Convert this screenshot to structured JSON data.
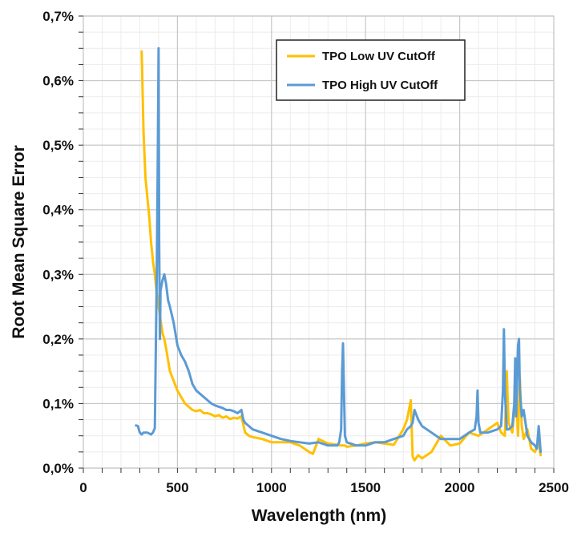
{
  "chart_data": {
    "type": "line",
    "title": "",
    "xlabel": "Wavelength (nm)",
    "ylabel": "Root Mean Square Error",
    "xlim": [
      0,
      2500
    ],
    "ylim": [
      0,
      0.7
    ],
    "x_major_ticks": [
      0,
      500,
      1000,
      1500,
      2000,
      2500
    ],
    "x_tick_labels": [
      "0",
      "500",
      "1000",
      "1500",
      "2000",
      "2500"
    ],
    "y_major_ticks": [
      0,
      0.1,
      0.2,
      0.3,
      0.4,
      0.5,
      0.6,
      0.7
    ],
    "y_tick_labels": [
      "0,0%",
      "0,1%",
      "0,2%",
      "0,3%",
      "0,4%",
      "0,5%",
      "0,6%",
      "0,7%"
    ],
    "x_minor_step": 100,
    "y_minor_step": 0.025,
    "grid": true,
    "legend_position": "top-right",
    "series": [
      {
        "name": "TPO Low UV CutOff",
        "color": "#FFC000",
        "x": [
          310,
          320,
          330,
          340,
          350,
          360,
          370,
          380,
          390,
          400,
          410,
          420,
          430,
          440,
          460,
          480,
          500,
          520,
          540,
          560,
          580,
          600,
          620,
          640,
          660,
          680,
          700,
          720,
          740,
          760,
          780,
          800,
          820,
          840,
          860,
          880,
          900,
          950,
          1000,
          1050,
          1100,
          1150,
          1200,
          1220,
          1250,
          1300,
          1350,
          1370,
          1380,
          1390,
          1400,
          1450,
          1500,
          1550,
          1600,
          1650,
          1700,
          1720,
          1740,
          1750,
          1760,
          1780,
          1800,
          1850,
          1900,
          1950,
          2000,
          2050,
          2100,
          2150,
          2200,
          2220,
          2240,
          2250,
          2260,
          2280,
          2300,
          2310,
          2320,
          2330,
          2340,
          2360,
          2380,
          2400,
          2420,
          2430
        ],
        "y": [
          0.645,
          0.52,
          0.45,
          0.42,
          0.39,
          0.35,
          0.32,
          0.3,
          0.27,
          0.25,
          0.23,
          0.21,
          0.2,
          0.185,
          0.15,
          0.135,
          0.12,
          0.11,
          0.1,
          0.095,
          0.09,
          0.088,
          0.09,
          0.085,
          0.085,
          0.083,
          0.08,
          0.082,
          0.078,
          0.08,
          0.076,
          0.078,
          0.077,
          0.08,
          0.055,
          0.05,
          0.048,
          0.045,
          0.04,
          0.04,
          0.04,
          0.035,
          0.025,
          0.022,
          0.045,
          0.038,
          0.036,
          0.035,
          0.035,
          0.035,
          0.033,
          0.035,
          0.038,
          0.04,
          0.038,
          0.036,
          0.06,
          0.075,
          0.105,
          0.018,
          0.012,
          0.02,
          0.015,
          0.025,
          0.05,
          0.035,
          0.038,
          0.055,
          0.05,
          0.06,
          0.07,
          0.055,
          0.05,
          0.15,
          0.07,
          0.055,
          0.12,
          0.05,
          0.14,
          0.065,
          0.045,
          0.06,
          0.03,
          0.025,
          0.04,
          0.02
        ]
      },
      {
        "name": "TPO High UV CutOff",
        "color": "#5B9BD5",
        "x": [
          280,
          290,
          300,
          310,
          320,
          340,
          360,
          370,
          380,
          390,
          395,
          400,
          403,
          407,
          410,
          420,
          430,
          440,
          450,
          460,
          480,
          500,
          520,
          540,
          560,
          580,
          600,
          620,
          640,
          660,
          680,
          700,
          720,
          740,
          760,
          780,
          800,
          820,
          840,
          850,
          860,
          880,
          900,
          950,
          1000,
          1050,
          1100,
          1150,
          1200,
          1250,
          1300,
          1350,
          1360,
          1370,
          1375,
          1380,
          1385,
          1390,
          1400,
          1450,
          1500,
          1550,
          1600,
          1650,
          1700,
          1720,
          1740,
          1750,
          1760,
          1780,
          1800,
          1850,
          1900,
          1950,
          2000,
          2050,
          2080,
          2090,
          2095,
          2100,
          2110,
          2150,
          2200,
          2220,
          2230,
          2235,
          2240,
          2250,
          2260,
          2280,
          2290,
          2295,
          2300,
          2310,
          2315,
          2320,
          2330,
          2340,
          2360,
          2380,
          2400,
          2410,
          2420,
          2430
        ],
        "y": [
          0.066,
          0.065,
          0.055,
          0.052,
          0.055,
          0.055,
          0.052,
          0.055,
          0.062,
          0.3,
          0.45,
          0.65,
          0.35,
          0.2,
          0.275,
          0.29,
          0.3,
          0.285,
          0.26,
          0.25,
          0.225,
          0.19,
          0.175,
          0.165,
          0.15,
          0.13,
          0.12,
          0.115,
          0.11,
          0.105,
          0.1,
          0.097,
          0.095,
          0.093,
          0.09,
          0.09,
          0.088,
          0.085,
          0.09,
          0.075,
          0.07,
          0.065,
          0.06,
          0.055,
          0.05,
          0.045,
          0.042,
          0.04,
          0.038,
          0.04,
          0.035,
          0.035,
          0.04,
          0.06,
          0.15,
          0.193,
          0.12,
          0.05,
          0.04,
          0.035,
          0.035,
          0.04,
          0.04,
          0.045,
          0.05,
          0.06,
          0.065,
          0.07,
          0.09,
          0.075,
          0.065,
          0.055,
          0.045,
          0.045,
          0.045,
          0.055,
          0.06,
          0.08,
          0.12,
          0.07,
          0.055,
          0.055,
          0.06,
          0.065,
          0.12,
          0.215,
          0.12,
          0.06,
          0.06,
          0.065,
          0.1,
          0.17,
          0.08,
          0.19,
          0.2,
          0.12,
          0.08,
          0.09,
          0.05,
          0.04,
          0.035,
          0.03,
          0.065,
          0.025
        ]
      }
    ]
  }
}
